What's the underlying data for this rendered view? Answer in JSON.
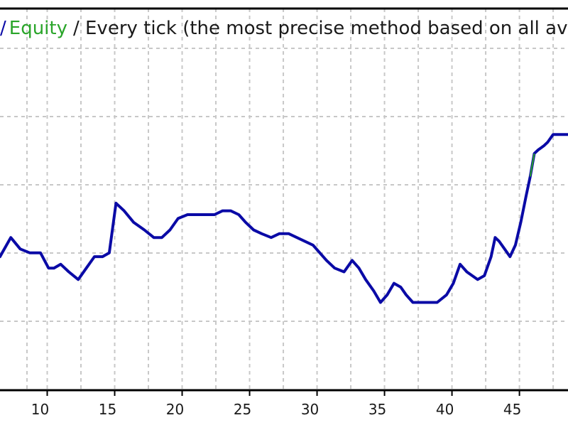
{
  "legend": {
    "prefix": "/",
    "equity_label": "Equity",
    "rest": "/ Every tick (the most precise method based on all availa"
  },
  "colors": {
    "balance": "#0a0aa6",
    "equity": "#2aa52a",
    "grid": "#c8c8c8",
    "axis": "#000000",
    "text": "#1a1a1a"
  },
  "chart_data": {
    "type": "line",
    "xlim": [
      6.5,
      48.6
    ],
    "ylim": [
      0,
      1
    ],
    "x_ticks": [
      10,
      15,
      20,
      25,
      30,
      35,
      40,
      45
    ],
    "grid": true,
    "series": [
      {
        "x": [
          6.5,
          7.3,
          8.0,
          8.7,
          9.5,
          10.1,
          10.5,
          11.0,
          11.6,
          12.3,
          12.9,
          13.5,
          14.1,
          14.6,
          15.1,
          15.7,
          16.4,
          17.2,
          17.9,
          18.5,
          19.1,
          19.7,
          20.4,
          21.0,
          21.7,
          22.4,
          23.0,
          23.6,
          24.2,
          24.7,
          25.3,
          25.9,
          26.6,
          27.2,
          27.9,
          28.5,
          29.1,
          29.7,
          30.2,
          30.7,
          31.3,
          32.0,
          32.6,
          33.1,
          33.6,
          34.2,
          34.7,
          35.2,
          35.7,
          36.2,
          36.6,
          37.1,
          37.6,
          38.2,
          38.9,
          39.6,
          40.1,
          40.6,
          41.1,
          41.5,
          41.9,
          42.4,
          42.9,
          43.2,
          43.5,
          43.9,
          44.3,
          44.7,
          45.1,
          45.5,
          45.8,
          46.1,
          46.4,
          46.8,
          47.1,
          47.5,
          48.0,
          48.6
        ],
        "y": [
          0.35,
          0.4,
          0.37,
          0.36,
          0.36,
          0.32,
          0.32,
          0.33,
          0.31,
          0.29,
          0.32,
          0.35,
          0.35,
          0.36,
          0.49,
          0.47,
          0.44,
          0.42,
          0.4,
          0.4,
          0.42,
          0.45,
          0.46,
          0.46,
          0.46,
          0.46,
          0.47,
          0.47,
          0.46,
          0.44,
          0.42,
          0.41,
          0.4,
          0.41,
          0.41,
          0.4,
          0.39,
          0.38,
          0.36,
          0.34,
          0.32,
          0.31,
          0.34,
          0.32,
          0.29,
          0.26,
          0.23,
          0.25,
          0.28,
          0.27,
          0.25,
          0.23,
          0.23,
          0.23,
          0.23,
          0.25,
          0.28,
          0.33,
          0.31,
          0.3,
          0.29,
          0.3,
          0.35,
          0.4,
          0.39,
          0.37,
          0.35,
          0.38,
          0.44,
          0.51,
          0.56,
          0.62,
          0.63,
          0.64,
          0.65,
          0.67,
          0.67,
          0.67
        ]
      }
    ]
  }
}
